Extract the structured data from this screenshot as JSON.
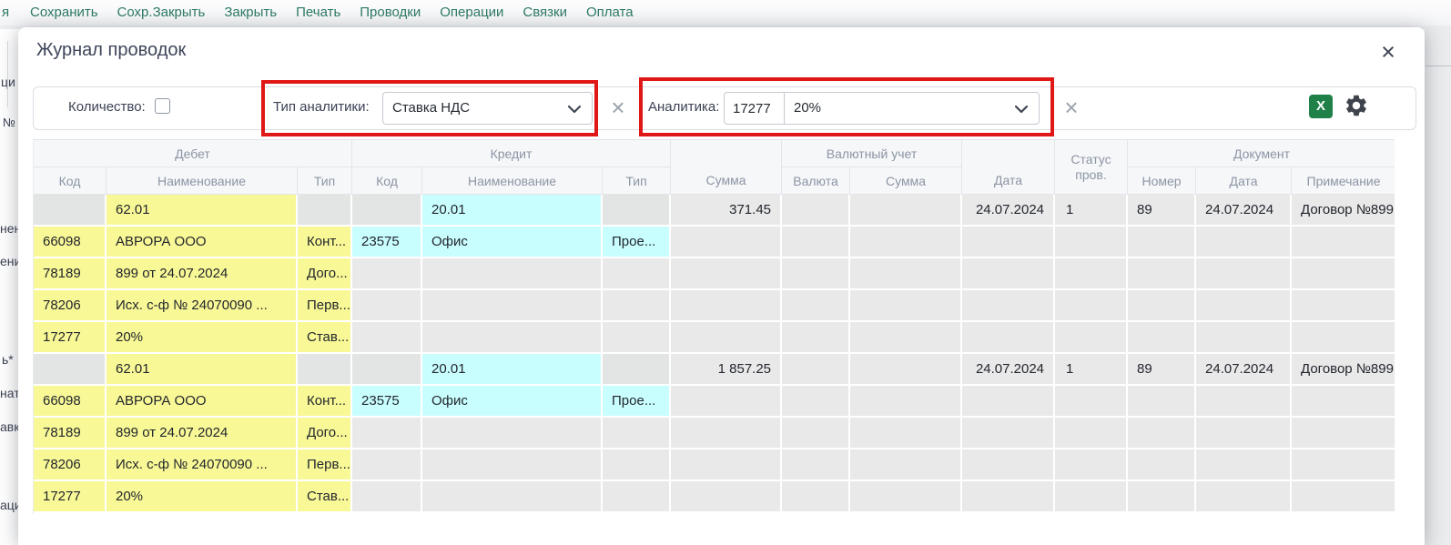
{
  "menu": {
    "edge_fragment": "я",
    "items": [
      "Сохранить",
      "Сохр.Закрыть",
      "Закрыть",
      "Печать",
      "Проводки",
      "Операции",
      "Связки",
      "Оплата"
    ]
  },
  "background_fragments": [
    "ци",
    "№",
    "нен",
    "ени",
    "ь*",
    "нат",
    "авк",
    "аци"
  ],
  "dialog": {
    "title": "Журнал проводок",
    "close_icon": "×"
  },
  "toolbar": {
    "quantity_label": "Количество:",
    "analytics_type": {
      "label": "Тип аналитики:",
      "value": "Ставка НДС"
    },
    "analytics": {
      "label": "Аналитика:",
      "code": "17277",
      "value": "20%"
    },
    "clear_icon": "×",
    "excel_icon_label": "X"
  },
  "colors": {
    "highlight_red": "#e01717",
    "cell_yellow": "#f9f896",
    "cell_cyan": "#c9feff",
    "excel_green": "#1f8048",
    "menu_teal": "#2d7a66"
  },
  "table": {
    "group_headers": {
      "debit": "Дебет",
      "credit": "Кредит",
      "currency": "Валютный учет",
      "document": "Документ"
    },
    "column_headers": {
      "code": "Код",
      "name": "Наименование",
      "type": "Тип",
      "sum": "Сумма",
      "currency": "Валюта",
      "currency_sum": "Сумма",
      "date": "Дата",
      "status": "Статус пров.",
      "number": "Номер",
      "doc_date": "Дата",
      "note": "Примечание"
    },
    "rows": [
      {
        "kind": "main",
        "cells": {
          "deb_name": "62.01",
          "cred_name": "20.01",
          "sum": "371.45",
          "date": "24.07.2024",
          "status": "1",
          "doc_number": "89",
          "doc_date": "24.07.2024",
          "note": "Договор №899"
        }
      },
      {
        "kind": "sub",
        "cells": {
          "deb_code": "66098",
          "deb_name": "АВРОРА ООО",
          "deb_type": "Конт...",
          "cred_code": "23575",
          "cred_name": "Офис",
          "cred_type": "Прое..."
        }
      },
      {
        "kind": "sub",
        "cells": {
          "deb_code": "78189",
          "deb_name": "899 от 24.07.2024",
          "deb_type": "Дого..."
        }
      },
      {
        "kind": "sub",
        "cells": {
          "deb_code": "78206",
          "deb_name": "Исх. с-ф № 24070090 ...",
          "deb_type": "Перв..."
        }
      },
      {
        "kind": "sub",
        "cells": {
          "deb_code": "17277",
          "deb_name": "20%",
          "deb_type": "Став..."
        }
      },
      {
        "kind": "main",
        "cells": {
          "deb_name": "62.01",
          "cred_name": "20.01",
          "sum": "1 857.25",
          "date": "24.07.2024",
          "status": "1",
          "doc_number": "89",
          "doc_date": "24.07.2024",
          "note": "Договор №899"
        }
      },
      {
        "kind": "sub",
        "cells": {
          "deb_code": "66098",
          "deb_name": "АВРОРА ООО",
          "deb_type": "Конт...",
          "cred_code": "23575",
          "cred_name": "Офис",
          "cred_type": "Прое..."
        }
      },
      {
        "kind": "sub",
        "cells": {
          "deb_code": "78189",
          "deb_name": "899 от 24.07.2024",
          "deb_type": "Дого..."
        }
      },
      {
        "kind": "sub",
        "cells": {
          "deb_code": "78206",
          "deb_name": "Исх. с-ф № 24070090 ...",
          "deb_type": "Перв..."
        }
      },
      {
        "kind": "sub",
        "cells": {
          "deb_code": "17277",
          "deb_name": "20%",
          "deb_type": "Став..."
        }
      }
    ]
  }
}
